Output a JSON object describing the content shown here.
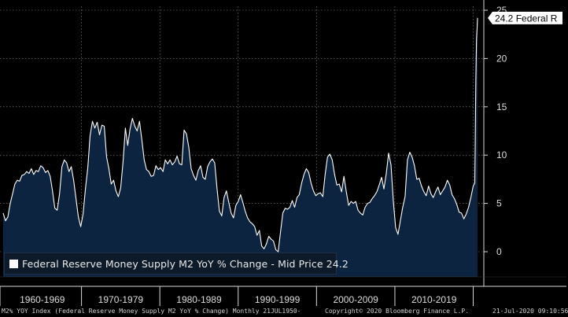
{
  "chart_data": {
    "type": "area",
    "title": "",
    "xlabel": "",
    "ylabel": "",
    "ylim": [
      -2.5,
      25
    ],
    "y_ticks": [
      0,
      5,
      10,
      15,
      20,
      25
    ],
    "x_categories": [
      "1960-1969",
      "1970-1979",
      "1980-1989",
      "1990-1999",
      "2000-2009",
      "2010-2019"
    ],
    "series": [
      {
        "name": "Federal Reserve Money Supply M2 YoY % Change - Mid Price 24.2",
        "color": "#ffffff",
        "fill": "#0c2440",
        "points": [
          [
            1960.0,
            4.0
          ],
          [
            1960.3,
            3.2
          ],
          [
            1960.6,
            3.6
          ],
          [
            1960.9,
            5.0
          ],
          [
            1961.2,
            6.0
          ],
          [
            1961.5,
            7.0
          ],
          [
            1961.8,
            7.4
          ],
          [
            1962.1,
            7.3
          ],
          [
            1962.4,
            7.9
          ],
          [
            1962.7,
            8.0
          ],
          [
            1963.0,
            8.3
          ],
          [
            1963.3,
            8.1
          ],
          [
            1963.6,
            8.6
          ],
          [
            1963.9,
            8.0
          ],
          [
            1964.2,
            8.4
          ],
          [
            1964.5,
            8.3
          ],
          [
            1964.8,
            8.9
          ],
          [
            1965.1,
            8.7
          ],
          [
            1965.4,
            8.2
          ],
          [
            1965.7,
            8.4
          ],
          [
            1966.0,
            7.8
          ],
          [
            1966.3,
            6.3
          ],
          [
            1966.6,
            4.5
          ],
          [
            1966.9,
            4.3
          ],
          [
            1967.2,
            6.0
          ],
          [
            1967.5,
            8.8
          ],
          [
            1967.8,
            9.5
          ],
          [
            1968.1,
            9.2
          ],
          [
            1968.4,
            8.3
          ],
          [
            1968.7,
            8.8
          ],
          [
            1969.0,
            7.4
          ],
          [
            1969.3,
            5.5
          ],
          [
            1969.6,
            3.6
          ],
          [
            1969.9,
            2.6
          ],
          [
            1970.2,
            3.9
          ],
          [
            1970.5,
            6.5
          ],
          [
            1970.8,
            8.7
          ],
          [
            1971.1,
            12.0
          ],
          [
            1971.4,
            13.5
          ],
          [
            1971.7,
            12.8
          ],
          [
            1972.0,
            13.4
          ],
          [
            1972.3,
            12.1
          ],
          [
            1972.6,
            13.1
          ],
          [
            1972.9,
            13.0
          ],
          [
            1973.2,
            9.8
          ],
          [
            1973.5,
            8.6
          ],
          [
            1973.8,
            7.0
          ],
          [
            1974.1,
            7.4
          ],
          [
            1974.4,
            6.3
          ],
          [
            1974.7,
            5.7
          ],
          [
            1975.0,
            6.6
          ],
          [
            1975.3,
            9.3
          ],
          [
            1975.6,
            12.8
          ],
          [
            1975.9,
            11.0
          ],
          [
            1976.2,
            12.7
          ],
          [
            1976.5,
            13.8
          ],
          [
            1976.8,
            13.0
          ],
          [
            1977.1,
            12.5
          ],
          [
            1977.4,
            13.5
          ],
          [
            1977.7,
            11.6
          ],
          [
            1978.0,
            9.5
          ],
          [
            1978.3,
            8.5
          ],
          [
            1978.6,
            8.3
          ],
          [
            1978.9,
            7.8
          ],
          [
            1979.2,
            7.9
          ],
          [
            1979.5,
            8.9
          ],
          [
            1979.8,
            8.5
          ],
          [
            1980.1,
            8.7
          ],
          [
            1980.4,
            8.3
          ],
          [
            1980.7,
            9.5
          ],
          [
            1981.0,
            9.1
          ],
          [
            1981.3,
            9.5
          ],
          [
            1981.6,
            9.0
          ],
          [
            1981.9,
            9.3
          ],
          [
            1982.2,
            9.9
          ],
          [
            1982.5,
            9.1
          ],
          [
            1982.8,
            9.0
          ],
          [
            1983.1,
            12.6
          ],
          [
            1983.4,
            12.2
          ],
          [
            1983.7,
            10.8
          ],
          [
            1984.0,
            8.6
          ],
          [
            1984.3,
            7.9
          ],
          [
            1984.6,
            7.4
          ],
          [
            1984.9,
            8.4
          ],
          [
            1985.2,
            8.9
          ],
          [
            1985.5,
            7.7
          ],
          [
            1985.8,
            7.5
          ],
          [
            1986.1,
            8.8
          ],
          [
            1986.4,
            9.3
          ],
          [
            1986.7,
            9.6
          ],
          [
            1987.0,
            9.2
          ],
          [
            1987.3,
            6.5
          ],
          [
            1987.6,
            4.2
          ],
          [
            1987.9,
            3.7
          ],
          [
            1988.2,
            5.6
          ],
          [
            1988.5,
            6.3
          ],
          [
            1988.8,
            5.1
          ],
          [
            1989.1,
            4.0
          ],
          [
            1989.4,
            3.5
          ],
          [
            1989.7,
            4.8
          ],
          [
            1990.0,
            5.2
          ],
          [
            1990.3,
            5.9
          ],
          [
            1990.6,
            5.1
          ],
          [
            1990.9,
            4.2
          ],
          [
            1991.2,
            3.5
          ],
          [
            1991.5,
            3.1
          ],
          [
            1991.8,
            2.9
          ],
          [
            1992.1,
            2.6
          ],
          [
            1992.4,
            1.7
          ],
          [
            1992.7,
            2.2
          ],
          [
            1993.0,
            0.6
          ],
          [
            1993.3,
            0.3
          ],
          [
            1993.6,
            0.8
          ],
          [
            1993.9,
            1.6
          ],
          [
            1994.2,
            1.3
          ],
          [
            1994.5,
            1.1
          ],
          [
            1994.8,
            0.2
          ],
          [
            1995.1,
            0.0
          ],
          [
            1995.4,
            2.0
          ],
          [
            1995.7,
            4.0
          ],
          [
            1996.0,
            4.5
          ],
          [
            1996.3,
            4.4
          ],
          [
            1996.6,
            4.6
          ],
          [
            1996.9,
            5.3
          ],
          [
            1997.2,
            4.6
          ],
          [
            1997.5,
            5.6
          ],
          [
            1997.8,
            5.9
          ],
          [
            1998.1,
            7.1
          ],
          [
            1998.4,
            8.0
          ],
          [
            1998.7,
            8.6
          ],
          [
            1999.0,
            8.2
          ],
          [
            1999.3,
            7.1
          ],
          [
            1999.6,
            6.3
          ],
          [
            1999.9,
            5.8
          ],
          [
            2000.2,
            6.0
          ],
          [
            2000.5,
            6.1
          ],
          [
            2000.8,
            5.7
          ],
          [
            2001.1,
            8.0
          ],
          [
            2001.4,
            9.8
          ],
          [
            2001.7,
            10.1
          ],
          [
            2002.0,
            9.5
          ],
          [
            2002.3,
            8.0
          ],
          [
            2002.6,
            6.9
          ],
          [
            2002.9,
            7.0
          ],
          [
            2003.2,
            6.2
          ],
          [
            2003.5,
            7.8
          ],
          [
            2003.8,
            6.2
          ],
          [
            2004.1,
            4.8
          ],
          [
            2004.4,
            5.2
          ],
          [
            2004.7,
            5.0
          ],
          [
            2005.0,
            5.2
          ],
          [
            2005.3,
            4.3
          ],
          [
            2005.6,
            4.0
          ],
          [
            2005.9,
            3.8
          ],
          [
            2006.2,
            4.6
          ],
          [
            2006.5,
            5.0
          ],
          [
            2006.8,
            5.1
          ],
          [
            2007.1,
            5.5
          ],
          [
            2007.4,
            5.8
          ],
          [
            2007.7,
            6.2
          ],
          [
            2008.0,
            6.9
          ],
          [
            2008.3,
            7.7
          ],
          [
            2008.6,
            6.5
          ],
          [
            2008.9,
            8.1
          ],
          [
            2009.2,
            10.2
          ],
          [
            2009.5,
            9.0
          ],
          [
            2009.8,
            5.2
          ],
          [
            2010.1,
            2.5
          ],
          [
            2010.4,
            1.8
          ],
          [
            2010.7,
            3.2
          ],
          [
            2011.0,
            4.6
          ],
          [
            2011.3,
            5.7
          ],
          [
            2011.6,
            9.5
          ],
          [
            2011.9,
            10.3
          ],
          [
            2012.2,
            9.8
          ],
          [
            2012.5,
            8.9
          ],
          [
            2012.8,
            7.5
          ],
          [
            2013.1,
            7.6
          ],
          [
            2013.4,
            6.8
          ],
          [
            2013.7,
            6.2
          ],
          [
            2014.0,
            5.8
          ],
          [
            2014.3,
            6.8
          ],
          [
            2014.6,
            6.0
          ],
          [
            2014.9,
            5.6
          ],
          [
            2015.2,
            6.2
          ],
          [
            2015.5,
            6.7
          ],
          [
            2015.8,
            5.9
          ],
          [
            2016.1,
            6.3
          ],
          [
            2016.4,
            6.7
          ],
          [
            2016.7,
            7.4
          ],
          [
            2017.0,
            6.9
          ],
          [
            2017.3,
            5.9
          ],
          [
            2017.6,
            5.5
          ],
          [
            2017.9,
            4.9
          ],
          [
            2018.2,
            4.1
          ],
          [
            2018.5,
            4.0
          ],
          [
            2018.8,
            3.4
          ],
          [
            2019.1,
            3.9
          ],
          [
            2019.4,
            4.6
          ],
          [
            2019.7,
            5.6
          ],
          [
            2020.0,
            6.8
          ],
          [
            2020.2,
            7.1
          ],
          [
            2020.25,
            10.5
          ],
          [
            2020.33,
            17.5
          ],
          [
            2020.42,
            22.0
          ],
          [
            2020.5,
            23.2
          ],
          [
            2020.55,
            24.2
          ]
        ]
      }
    ],
    "last_value_label": "24.2 Federal R",
    "legend": "bottom-left",
    "grid": true
  },
  "footer": {
    "left": "M2% YOY Index (Federal Reserve Money Supply M2 YoY % Change)  Monthly 21JUL1950-",
    "center": "Copyright© 2020 Bloomberg Finance L.P.",
    "right": "21-Jul-2020 09:10:56"
  },
  "colors": {
    "background": "#000000",
    "area": "#0c2440",
    "line": "#ffffff",
    "grid": "#8a8a8a"
  }
}
